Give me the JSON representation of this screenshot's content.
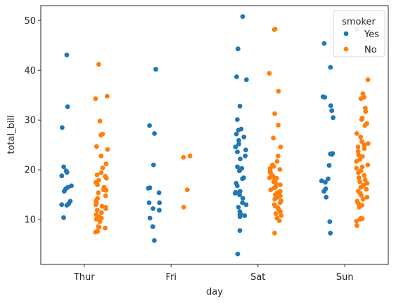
{
  "chart_data": {
    "type": "scatter",
    "subtype": "stripplot",
    "xlabel": "day",
    "ylabel": "total_bill",
    "categories": [
      "Thur",
      "Fri",
      "Sat",
      "Sun"
    ],
    "ylim": [
      1,
      53
    ],
    "yticks": [
      10,
      20,
      30,
      40,
      50
    ],
    "grid": false,
    "legend": {
      "title": "smoker",
      "placement": "top-right"
    },
    "series": [
      {
        "name": "Yes",
        "color": "#1f77b4",
        "points": [
          {
            "day": "Thur",
            "y": 43.1
          },
          {
            "day": "Thur",
            "y": 32.7
          },
          {
            "day": "Thur",
            "y": 28.5
          },
          {
            "day": "Thur",
            "y": 20.6
          },
          {
            "day": "Thur",
            "y": 19.8
          },
          {
            "day": "Thur",
            "y": 19.5
          },
          {
            "day": "Thur",
            "y": 18.8
          },
          {
            "day": "Thur",
            "y": 16.8
          },
          {
            "day": "Thur",
            "y": 16.5
          },
          {
            "day": "Thur",
            "y": 16.2
          },
          {
            "day": "Thur",
            "y": 15.7
          },
          {
            "day": "Thur",
            "y": 13.7
          },
          {
            "day": "Thur",
            "y": 13.2
          },
          {
            "day": "Thur",
            "y": 13.0
          },
          {
            "day": "Thur",
            "y": 12.9
          },
          {
            "day": "Thur",
            "y": 10.4
          },
          {
            "day": "Fri",
            "y": 40.2
          },
          {
            "day": "Fri",
            "y": 28.9
          },
          {
            "day": "Fri",
            "y": 27.3
          },
          {
            "day": "Fri",
            "y": 21.0
          },
          {
            "day": "Fri",
            "y": 16.4
          },
          {
            "day": "Fri",
            "y": 16.3
          },
          {
            "day": "Fri",
            "y": 15.4
          },
          {
            "day": "Fri",
            "y": 13.4
          },
          {
            "day": "Fri",
            "y": 13.4
          },
          {
            "day": "Fri",
            "y": 12.2
          },
          {
            "day": "Fri",
            "y": 11.9
          },
          {
            "day": "Fri",
            "y": 10.3
          },
          {
            "day": "Fri",
            "y": 8.6
          },
          {
            "day": "Fri",
            "y": 5.8
          },
          {
            "day": "Sat",
            "y": 50.8
          },
          {
            "day": "Sat",
            "y": 44.3
          },
          {
            "day": "Sat",
            "y": 38.7
          },
          {
            "day": "Sat",
            "y": 38.1
          },
          {
            "day": "Sat",
            "y": 32.8
          },
          {
            "day": "Sat",
            "y": 30.1
          },
          {
            "day": "Sat",
            "y": 28.2
          },
          {
            "day": "Sat",
            "y": 28.0
          },
          {
            "day": "Sat",
            "y": 27.2
          },
          {
            "day": "Sat",
            "y": 26.6
          },
          {
            "day": "Sat",
            "y": 25.9
          },
          {
            "day": "Sat",
            "y": 25.2
          },
          {
            "day": "Sat",
            "y": 24.6
          },
          {
            "day": "Sat",
            "y": 24.0
          },
          {
            "day": "Sat",
            "y": 23.6
          },
          {
            "day": "Sat",
            "y": 22.8
          },
          {
            "day": "Sat",
            "y": 22.2
          },
          {
            "day": "Sat",
            "y": 20.6
          },
          {
            "day": "Sat",
            "y": 20.3
          },
          {
            "day": "Sat",
            "y": 19.8
          },
          {
            "day": "Sat",
            "y": 18.4
          },
          {
            "day": "Sat",
            "y": 18.2
          },
          {
            "day": "Sat",
            "y": 17.3
          },
          {
            "day": "Sat",
            "y": 16.8
          },
          {
            "day": "Sat",
            "y": 15.7
          },
          {
            "day": "Sat",
            "y": 15.5
          },
          {
            "day": "Sat",
            "y": 15.3
          },
          {
            "day": "Sat",
            "y": 15.0
          },
          {
            "day": "Sat",
            "y": 14.3
          },
          {
            "day": "Sat",
            "y": 13.4
          },
          {
            "day": "Sat",
            "y": 13.0
          },
          {
            "day": "Sat",
            "y": 12.5
          },
          {
            "day": "Sat",
            "y": 11.6
          },
          {
            "day": "Sat",
            "y": 11.2
          },
          {
            "day": "Sat",
            "y": 11.0
          },
          {
            "day": "Sat",
            "y": 10.8
          },
          {
            "day": "Sat",
            "y": 10.6
          },
          {
            "day": "Sat",
            "y": 7.8
          },
          {
            "day": "Sat",
            "y": 3.1
          },
          {
            "day": "Sun",
            "y": 45.4
          },
          {
            "day": "Sun",
            "y": 40.6
          },
          {
            "day": "Sun",
            "y": 34.7
          },
          {
            "day": "Sun",
            "y": 34.6
          },
          {
            "day": "Sun",
            "y": 32.9
          },
          {
            "day": "Sun",
            "y": 31.9
          },
          {
            "day": "Sun",
            "y": 30.5
          },
          {
            "day": "Sun",
            "y": 23.3
          },
          {
            "day": "Sun",
            "y": 23.1
          },
          {
            "day": "Sun",
            "y": 23.2
          },
          {
            "day": "Sun",
            "y": 20.9
          },
          {
            "day": "Sun",
            "y": 18.2
          },
          {
            "day": "Sun",
            "y": 17.8
          },
          {
            "day": "Sun",
            "y": 17.5
          },
          {
            "day": "Sun",
            "y": 16.2
          },
          {
            "day": "Sun",
            "y": 15.7
          },
          {
            "day": "Sun",
            "y": 14.5
          },
          {
            "day": "Sun",
            "y": 9.6
          },
          {
            "day": "Sun",
            "y": 7.3
          }
        ]
      },
      {
        "name": "No",
        "color": "#ff7f0e",
        "points": [
          {
            "day": "Thur",
            "y": 41.2
          },
          {
            "day": "Thur",
            "y": 34.8
          },
          {
            "day": "Thur",
            "y": 34.3
          },
          {
            "day": "Thur",
            "y": 29.8
          },
          {
            "day": "Thur",
            "y": 27.2
          },
          {
            "day": "Thur",
            "y": 27.0
          },
          {
            "day": "Thur",
            "y": 24.7
          },
          {
            "day": "Thur",
            "y": 24.1
          },
          {
            "day": "Thur",
            "y": 22.8
          },
          {
            "day": "Thur",
            "y": 21.2
          },
          {
            "day": "Thur",
            "y": 20.4
          },
          {
            "day": "Thur",
            "y": 19.4
          },
          {
            "day": "Thur",
            "y": 19.0
          },
          {
            "day": "Thur",
            "y": 18.7
          },
          {
            "day": "Thur",
            "y": 18.3
          },
          {
            "day": "Thur",
            "y": 17.9
          },
          {
            "day": "Thur",
            "y": 17.5
          },
          {
            "day": "Thur",
            "y": 17.0
          },
          {
            "day": "Thur",
            "y": 16.5
          },
          {
            "day": "Thur",
            "y": 16.3
          },
          {
            "day": "Thur",
            "y": 16.0
          },
          {
            "day": "Thur",
            "y": 15.9
          },
          {
            "day": "Thur",
            "y": 15.4
          },
          {
            "day": "Thur",
            "y": 14.8
          },
          {
            "day": "Thur",
            "y": 14.3
          },
          {
            "day": "Thur",
            "y": 13.8
          },
          {
            "day": "Thur",
            "y": 13.4
          },
          {
            "day": "Thur",
            "y": 13.0
          },
          {
            "day": "Thur",
            "y": 12.7
          },
          {
            "day": "Thur",
            "y": 12.5
          },
          {
            "day": "Thur",
            "y": 12.2
          },
          {
            "day": "Thur",
            "y": 11.9
          },
          {
            "day": "Thur",
            "y": 11.4
          },
          {
            "day": "Thur",
            "y": 11.0
          },
          {
            "day": "Thur",
            "y": 10.6
          },
          {
            "day": "Thur",
            "y": 10.3
          },
          {
            "day": "Thur",
            "y": 10.1
          },
          {
            "day": "Thur",
            "y": 9.6
          },
          {
            "day": "Thur",
            "y": 8.6
          },
          {
            "day": "Thur",
            "y": 8.5
          },
          {
            "day": "Thur",
            "y": 8.3
          },
          {
            "day": "Thur",
            "y": 7.7
          },
          {
            "day": "Thur",
            "y": 7.6
          },
          {
            "day": "Thur",
            "y": 7.5
          },
          {
            "day": "Fri",
            "y": 22.8
          },
          {
            "day": "Fri",
            "y": 22.5
          },
          {
            "day": "Fri",
            "y": 16.0
          },
          {
            "day": "Fri",
            "y": 12.5
          },
          {
            "day": "Sat",
            "y": 48.3
          },
          {
            "day": "Sat",
            "y": 48.2
          },
          {
            "day": "Sat",
            "y": 39.4
          },
          {
            "day": "Sat",
            "y": 35.8
          },
          {
            "day": "Sat",
            "y": 31.3
          },
          {
            "day": "Sat",
            "y": 29.0
          },
          {
            "day": "Sat",
            "y": 26.4
          },
          {
            "day": "Sat",
            "y": 24.6
          },
          {
            "day": "Sat",
            "y": 22.8
          },
          {
            "day": "Sat",
            "y": 21.7
          },
          {
            "day": "Sat",
            "y": 21.0
          },
          {
            "day": "Sat",
            "y": 20.7
          },
          {
            "day": "Sat",
            "y": 20.3
          },
          {
            "day": "Sat",
            "y": 20.1
          },
          {
            "day": "Sat",
            "y": 19.8
          },
          {
            "day": "Sat",
            "y": 19.5
          },
          {
            "day": "Sat",
            "y": 19.1
          },
          {
            "day": "Sat",
            "y": 18.7
          },
          {
            "day": "Sat",
            "y": 18.4
          },
          {
            "day": "Sat",
            "y": 18.3
          },
          {
            "day": "Sat",
            "y": 17.9
          },
          {
            "day": "Sat",
            "y": 17.6
          },
          {
            "day": "Sat",
            "y": 17.3
          },
          {
            "day": "Sat",
            "y": 17.0
          },
          {
            "day": "Sat",
            "y": 16.6
          },
          {
            "day": "Sat",
            "y": 16.4
          },
          {
            "day": "Sat",
            "y": 16.0
          },
          {
            "day": "Sat",
            "y": 15.7
          },
          {
            "day": "Sat",
            "y": 15.4
          },
          {
            "day": "Sat",
            "y": 15.0
          },
          {
            "day": "Sat",
            "y": 14.8
          },
          {
            "day": "Sat",
            "y": 14.5
          },
          {
            "day": "Sat",
            "y": 14.1
          },
          {
            "day": "Sat",
            "y": 13.8
          },
          {
            "day": "Sat",
            "y": 13.4
          },
          {
            "day": "Sat",
            "y": 13.0
          },
          {
            "day": "Sat",
            "y": 12.7
          },
          {
            "day": "Sat",
            "y": 12.4
          },
          {
            "day": "Sat",
            "y": 12.0
          },
          {
            "day": "Sat",
            "y": 11.6
          },
          {
            "day": "Sat",
            "y": 11.2
          },
          {
            "day": "Sat",
            "y": 10.8
          },
          {
            "day": "Sat",
            "y": 10.3
          },
          {
            "day": "Sat",
            "y": 9.8
          },
          {
            "day": "Sat",
            "y": 7.3
          },
          {
            "day": "Sun",
            "y": 48.2
          },
          {
            "day": "Sun",
            "y": 38.1
          },
          {
            "day": "Sun",
            "y": 35.3
          },
          {
            "day": "Sun",
            "y": 34.6
          },
          {
            "day": "Sun",
            "y": 34.3
          },
          {
            "day": "Sun",
            "y": 32.4
          },
          {
            "day": "Sun",
            "y": 31.7
          },
          {
            "day": "Sun",
            "y": 30.4
          },
          {
            "day": "Sun",
            "y": 30.1
          },
          {
            "day": "Sun",
            "y": 29.3
          },
          {
            "day": "Sun",
            "y": 28.9
          },
          {
            "day": "Sun",
            "y": 27.3
          },
          {
            "day": "Sun",
            "y": 26.6
          },
          {
            "day": "Sun",
            "y": 25.7
          },
          {
            "day": "Sun",
            "y": 25.3
          },
          {
            "day": "Sun",
            "y": 25.0
          },
          {
            "day": "Sun",
            "y": 24.6
          },
          {
            "day": "Sun",
            "y": 24.3
          },
          {
            "day": "Sun",
            "y": 23.7
          },
          {
            "day": "Sun",
            "y": 23.0
          },
          {
            "day": "Sun",
            "y": 22.7
          },
          {
            "day": "Sun",
            "y": 22.1
          },
          {
            "day": "Sun",
            "y": 21.7
          },
          {
            "day": "Sun",
            "y": 21.0
          },
          {
            "day": "Sun",
            "y": 20.6
          },
          {
            "day": "Sun",
            "y": 20.3
          },
          {
            "day": "Sun",
            "y": 19.8
          },
          {
            "day": "Sun",
            "y": 19.4
          },
          {
            "day": "Sun",
            "y": 18.9
          },
          {
            "day": "Sun",
            "y": 18.4
          },
          {
            "day": "Sun",
            "y": 18.0
          },
          {
            "day": "Sun",
            "y": 17.6
          },
          {
            "day": "Sun",
            "y": 17.3
          },
          {
            "day": "Sun",
            "y": 16.9
          },
          {
            "day": "Sun",
            "y": 16.5
          },
          {
            "day": "Sun",
            "y": 16.1
          },
          {
            "day": "Sun",
            "y": 15.7
          },
          {
            "day": "Sun",
            "y": 15.3
          },
          {
            "day": "Sun",
            "y": 14.9
          },
          {
            "day": "Sun",
            "y": 14.5
          },
          {
            "day": "Sun",
            "y": 14.1
          },
          {
            "day": "Sun",
            "y": 13.7
          },
          {
            "day": "Sun",
            "y": 13.3
          },
          {
            "day": "Sun",
            "y": 12.9
          },
          {
            "day": "Sun",
            "y": 12.5
          },
          {
            "day": "Sun",
            "y": 10.3
          },
          {
            "day": "Sun",
            "y": 10.2
          },
          {
            "day": "Sun",
            "y": 10.1
          },
          {
            "day": "Sun",
            "y": 9.7
          },
          {
            "day": "Sun",
            "y": 8.8
          }
        ]
      }
    ]
  }
}
